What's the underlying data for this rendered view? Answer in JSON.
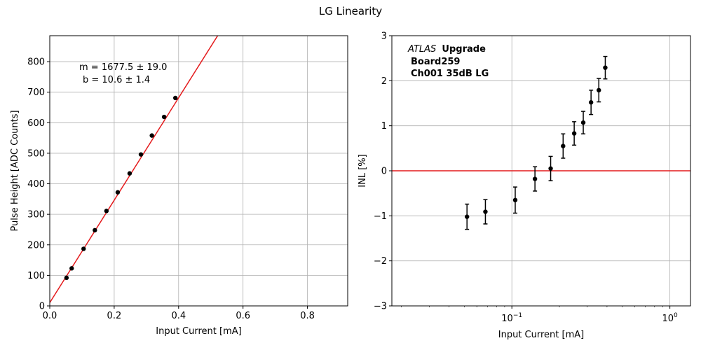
{
  "figure_title": "LG Linearity",
  "chart_data": [
    {
      "type": "scatter",
      "title": "",
      "xlabel": "Input Current [mA]",
      "ylabel": "Pulse Height [ADC Counts]",
      "xlim": [
        0,
        0.925
      ],
      "ylim": [
        0,
        885
      ],
      "x_scale": "linear",
      "grid": true,
      "xticks": [
        0.0,
        0.2,
        0.4,
        0.6,
        0.8
      ],
      "xtick_labels": [
        "0.0",
        "0.2",
        "0.4",
        "0.6",
        "0.8"
      ],
      "yticks": [
        0,
        100,
        200,
        300,
        400,
        500,
        600,
        700,
        800
      ],
      "ytick_labels": [
        "0",
        "100",
        "200",
        "300",
        "400",
        "500",
        "600",
        "700",
        "800"
      ],
      "series": [
        {
          "kind": "points",
          "color": "#000000",
          "x": [
            0.052,
            0.068,
            0.105,
            0.14,
            0.176,
            0.211,
            0.248,
            0.283,
            0.317,
            0.355,
            0.39
          ],
          "y": [
            92,
            123,
            187,
            248,
            311,
            372,
            434,
            496,
            558,
            619,
            681
          ]
        },
        {
          "kind": "fit_line",
          "color": "#e41a1c",
          "slope": 1677.5,
          "intercept": 10.6
        }
      ],
      "annotation": {
        "line1": "m = 1677.5 ± 19.0",
        "line2": "b = 10.6 ± 1.4"
      }
    },
    {
      "type": "scatter",
      "title": "",
      "xlabel": "Input Current [mA]",
      "ylabel": "INL [%]",
      "x_scale": "log",
      "xlim": [
        0.0174,
        1.35
      ],
      "ylim": [
        -3,
        3
      ],
      "grid": true,
      "xticks": [
        0.1,
        1
      ],
      "xtick_labels": [
        {
          "base": "10",
          "exp": "−1"
        },
        {
          "base": "10",
          "exp": "0"
        }
      ],
      "yticks": [
        -3,
        -2,
        -1,
        0,
        1,
        2,
        3
      ],
      "ytick_labels": [
        "−3",
        "−2",
        "−1",
        "0",
        "1",
        "2",
        "3"
      ],
      "series": [
        {
          "kind": "errorbar_points",
          "color": "#000000",
          "x": [
            0.052,
            0.068,
            0.105,
            0.14,
            0.176,
            0.211,
            0.248,
            0.283,
            0.317,
            0.355,
            0.39
          ],
          "y": [
            -1.02,
            -0.91,
            -0.65,
            -0.18,
            0.05,
            0.55,
            0.83,
            1.07,
            1.52,
            1.79,
            2.29
          ],
          "yerr": [
            0.28,
            0.27,
            0.29,
            0.27,
            0.27,
            0.27,
            0.26,
            0.25,
            0.27,
            0.26,
            0.25
          ]
        },
        {
          "kind": "hline",
          "color": "#e41a1c",
          "y": 0
        }
      ],
      "annotation": {
        "atlas": "ATLAS",
        "upgrade": "Upgrade",
        "board": "Board259",
        "channel": "Ch001 35dB LG"
      }
    }
  ]
}
